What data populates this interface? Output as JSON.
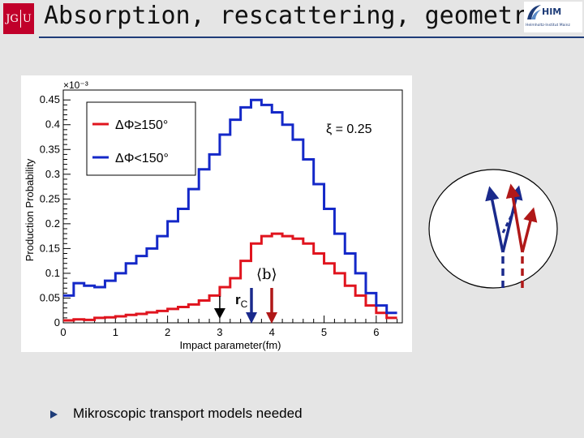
{
  "slide": {
    "title": "Absorption, rescattering, geometry…",
    "bullet": "Mikroscopic transport models needed",
    "logo_left": {
      "part1": "JG",
      "part2": "U"
    },
    "logo_right": {
      "name": "HIM",
      "subtitle": "Helmholtz-Institut Mainz"
    }
  },
  "chart_data": {
    "type": "line",
    "ylabel": "Production Probability",
    "xlabel": "Impact parameter(fm)",
    "y_multiplier": "×10⁻³",
    "xlim": [
      0,
      6.5
    ],
    "ylim": [
      0,
      0.47
    ],
    "xticks": [
      "0",
      "1",
      "2",
      "3",
      "4",
      "5",
      "6"
    ],
    "yticks": [
      "0",
      "0.05",
      "0.1",
      "0.15",
      "0.2",
      "0.25",
      "0.3",
      "0.35",
      "0.4",
      "0.45"
    ],
    "bin_edges": [
      0,
      0.2,
      0.4,
      0.6,
      0.8,
      1.0,
      1.2,
      1.4,
      1.6,
      1.8,
      2.0,
      2.2,
      2.4,
      2.6,
      2.8,
      3.0,
      3.2,
      3.4,
      3.6,
      3.8,
      4.0,
      4.2,
      4.4,
      4.6,
      4.8,
      5.0,
      5.2,
      5.4,
      5.6,
      5.8,
      6.0,
      6.2,
      6.4
    ],
    "series": [
      {
        "name": "ΔΦ≥150°",
        "color": "#e0141e",
        "values": [
          0.005,
          0.007,
          0.006,
          0.01,
          0.011,
          0.013,
          0.016,
          0.018,
          0.021,
          0.024,
          0.028,
          0.032,
          0.037,
          0.045,
          0.055,
          0.072,
          0.09,
          0.125,
          0.16,
          0.175,
          0.18,
          0.175,
          0.17,
          0.16,
          0.14,
          0.12,
          0.1,
          0.075,
          0.055,
          0.035,
          0.02,
          0.01
        ]
      },
      {
        "name": "ΔΦ<150°",
        "color": "#1428c8",
        "values": [
          0.055,
          0.08,
          0.075,
          0.072,
          0.085,
          0.1,
          0.12,
          0.135,
          0.15,
          0.175,
          0.205,
          0.23,
          0.27,
          0.31,
          0.34,
          0.38,
          0.41,
          0.435,
          0.45,
          0.44,
          0.425,
          0.4,
          0.37,
          0.33,
          0.28,
          0.23,
          0.18,
          0.14,
          0.1,
          0.06,
          0.035,
          0.02
        ]
      }
    ],
    "annotations": {
      "xi": "ξ = 0.25",
      "mean_b": "⟨b⟩",
      "rc": "r",
      "rc_sub": "C",
      "rc_position": 3.0
    },
    "legend_position": "top-left"
  }
}
